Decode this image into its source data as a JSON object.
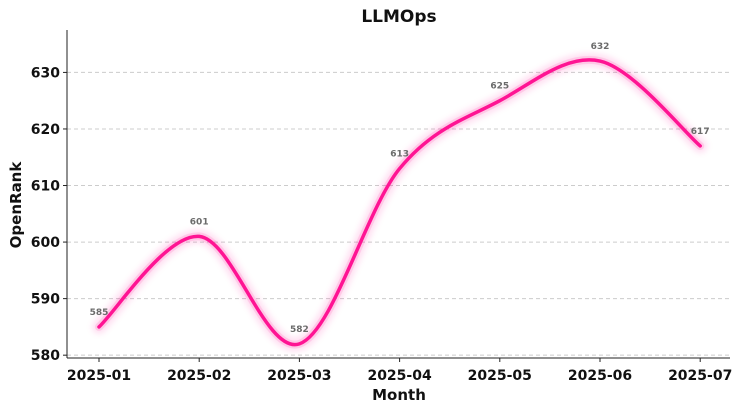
{
  "chart_data": {
    "type": "line",
    "title": "LLMOps",
    "xlabel": "Month",
    "ylabel": "OpenRank",
    "x": [
      "2025-01",
      "2025-02",
      "2025-03",
      "2025-04",
      "2025-05",
      "2025-06",
      "2025-07"
    ],
    "ylim": [
      579.5,
      637.5
    ],
    "yticks": [
      580,
      590,
      600,
      610,
      620,
      630
    ],
    "grid": "y-dashed",
    "series": [
      {
        "values": [
          585,
          601,
          582,
          613,
          625,
          632,
          617
        ],
        "color": "#ff1493",
        "smoothed": true
      }
    ]
  }
}
